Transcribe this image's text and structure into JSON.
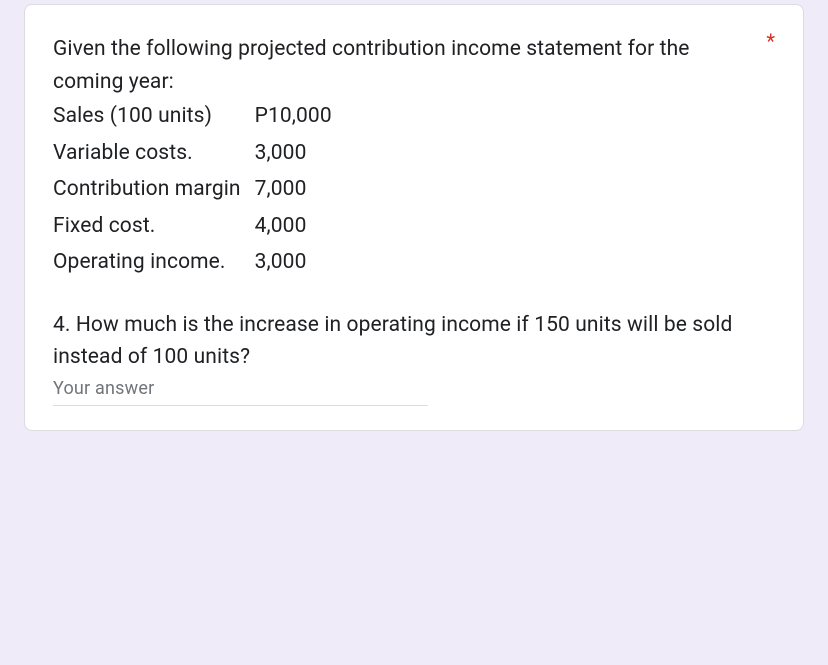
{
  "card": {
    "required_marker": "*",
    "required_color": "#d93025",
    "background": "#ffffff",
    "border_color": "#dadce0",
    "page_background": "#f0ebf8"
  },
  "question": {
    "intro": "Given the following projected contribution income statement for the coming year:",
    "statement_rows": [
      {
        "label": "Sales (100 units)",
        "value": "P10,000"
      },
      {
        "label": "Variable costs.",
        "value": "3,000"
      },
      {
        "label": "Contribution margin",
        "value": "7,000"
      },
      {
        "label": "Fixed cost.",
        "value": "4,000"
      },
      {
        "label": "Operating income.",
        "value": "3,000"
      }
    ],
    "followup": "4. How much is the increase in operating income if 150 units will be sold instead of 100 units?",
    "text_color": "#202124",
    "font_size_pt": 16
  },
  "answer": {
    "placeholder": "Your answer",
    "value": "",
    "placeholder_color": "#70757a",
    "underline_color": "#dadce0",
    "focus_color": "#673ab7"
  }
}
